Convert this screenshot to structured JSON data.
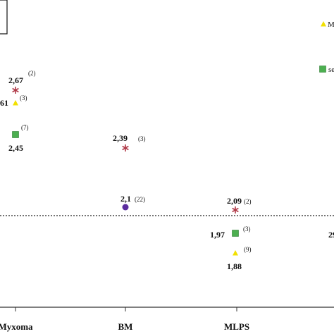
{
  "chart_data": {
    "type": "scatter",
    "categories": [
      "Myxoma",
      "BM",
      "MLPS"
    ],
    "reference_line_y": 2.0,
    "reference_line_style": "dotted",
    "points": [
      {
        "category": "Myxoma",
        "marker": "asterisk",
        "color": "#b03a48",
        "label": "2,67",
        "n": "(2)"
      },
      {
        "category": "Myxoma",
        "marker": "triangle",
        "color": "#f2e000",
        "label": "61",
        "n": "(3)"
      },
      {
        "category": "Myxoma",
        "marker": "square",
        "color": "#4caf50",
        "label": "2,45",
        "n": "(7)"
      },
      {
        "category": "BM",
        "marker": "asterisk",
        "color": "#b03a48",
        "label": "2,39",
        "n": "(3)"
      },
      {
        "category": "BM",
        "marker": "circle",
        "color": "#5b2c9e",
        "label": "2,1",
        "n": "(22)"
      },
      {
        "category": "MLPS",
        "marker": "asterisk",
        "color": "#b03a48",
        "label": "2,09",
        "n": "(2)"
      },
      {
        "category": "MLPS",
        "marker": "square",
        "color": "#4caf50",
        "label": "1,97",
        "n": "(3)"
      },
      {
        "category": "MLPS",
        "marker": "triangle",
        "color": "#f2e000",
        "label": "1,88",
        "n": "(9)"
      }
    ],
    "legend": [
      {
        "marker": "triangle",
        "color": "#f2e000",
        "label": "M"
      },
      {
        "marker": "square",
        "color": "#4caf50",
        "label": "se"
      }
    ],
    "edge_fragment_label": "29"
  }
}
